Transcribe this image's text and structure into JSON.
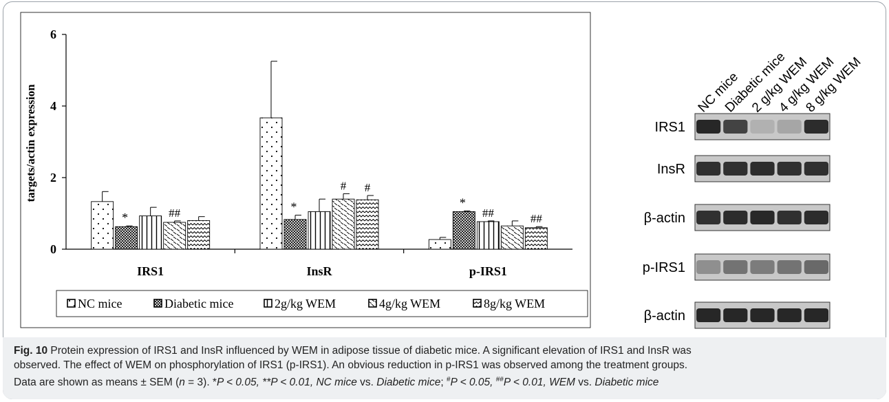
{
  "chart_data": {
    "type": "bar",
    "ylabel": "targets/actin expression",
    "ylim": [
      0,
      6
    ],
    "yticks": [
      "0",
      "2",
      "4",
      "6"
    ],
    "categories": [
      "IRS1",
      "InsR",
      "p-IRS1"
    ],
    "series": [
      {
        "name": "NC mice",
        "pattern": "dots",
        "values": [
          1.33,
          3.67,
          0.27
        ],
        "errors": [
          0.28,
          1.58,
          0.06
        ],
        "marks": [
          "",
          "",
          ""
        ]
      },
      {
        "name": "Diabetic mice",
        "pattern": "crosshatch",
        "values": [
          0.63,
          0.83,
          1.05
        ],
        "errors": [
          0.02,
          0.12,
          0.02
        ],
        "marks": [
          "*",
          "*",
          "*"
        ]
      },
      {
        "name": "2g/kg WEM",
        "pattern": "vertical",
        "values": [
          0.93,
          1.05,
          0.77
        ],
        "errors": [
          0.24,
          0.35,
          0.02
        ],
        "marks": [
          "",
          "",
          "##"
        ]
      },
      {
        "name": "4g/kg WEM",
        "pattern": "dashes",
        "values": [
          0.75,
          1.4,
          0.65
        ],
        "errors": [
          0.04,
          0.15,
          0.14
        ],
        "marks": [
          "##",
          "#",
          ""
        ]
      },
      {
        "name": "8g/kg WEM",
        "pattern": "waves",
        "values": [
          0.8,
          1.38,
          0.6
        ],
        "errors": [
          0.11,
          0.12,
          0.03
        ],
        "marks": [
          "",
          "#",
          "##"
        ]
      }
    ],
    "legend_position": "bottom",
    "grid": false
  },
  "blot": {
    "lanes": [
      "NC mice",
      "Diabetic mice",
      "2 g/kg WEM",
      "4 g/kg WEM",
      "8 g/kg WEM"
    ],
    "rows": [
      {
        "label": "IRS1",
        "intensity": [
          0.85,
          0.7,
          0.12,
          0.18,
          0.82
        ]
      },
      {
        "label": "InsR",
        "intensity": [
          0.8,
          0.8,
          0.82,
          0.8,
          0.8
        ]
      },
      {
        "label": "β-actin",
        "intensity": [
          0.8,
          0.82,
          0.84,
          0.8,
          0.82
        ]
      },
      {
        "label": "p-IRS1",
        "intensity": [
          0.3,
          0.45,
          0.4,
          0.45,
          0.5
        ]
      },
      {
        "label": "β-actin",
        "intensity": [
          0.85,
          0.85,
          0.85,
          0.85,
          0.85
        ]
      }
    ]
  },
  "caption": {
    "fig_label": "Fig. 10",
    "line1": "Protein expression of IRS1 and InsR influenced by WEM in adipose tissue of diabetic mice. A significant elevation of IRS1 and InsR was",
    "line2": "observed. The effect of WEM on phosphorylation of IRS1 (p-IRS1). An obvious reduction in p-IRS1 was observed among the treatment groups.",
    "line3_a": "Data are shown as means ± SEM (",
    "line3_n": "n",
    "line3_b": " = 3). *",
    "line3_c": "P < 0.05, **P < 0.01, NC mice",
    "line3_d": " vs. ",
    "line3_e": "Diabetic mice",
    "line3_f": "; ",
    "line3_g": "#",
    "line3_h": "P < 0.05, ",
    "line3_i": "##",
    "line3_j": "P < 0.01, WEM",
    "line3_k": " vs. ",
    "line3_l": "Diabetic mice"
  }
}
